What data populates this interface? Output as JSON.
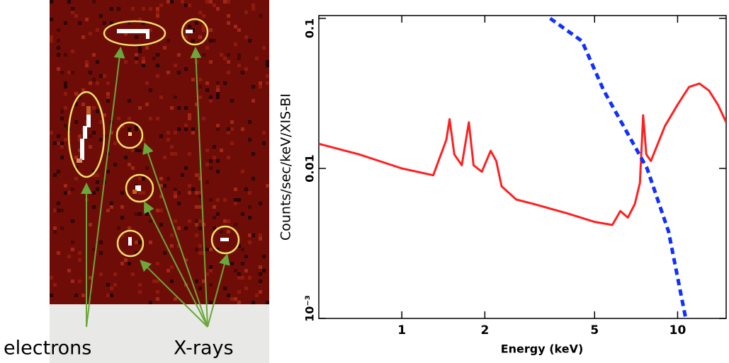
{
  "image_panel": {
    "labels": [
      "electrons",
      "X-rays"
    ]
  },
  "chart_data": {
    "type": "line",
    "xlabel": "Energy (keV)",
    "ylabel": "Counts/sec/keV/XIS-BI",
    "xscale": "log",
    "yscale": "log",
    "xlim": [
      0.5,
      15
    ],
    "ylim": [
      0.001,
      0.1
    ],
    "xticks": [
      1,
      2,
      5,
      10
    ],
    "yticks": [
      {
        "value": 0.001,
        "label": "10⁻³"
      },
      0.01,
      0.1
    ],
    "series": [
      {
        "color": "#ff2020",
        "style": "solid",
        "x": [
          0.5,
          0.7,
          1.0,
          1.3,
          1.45,
          1.49,
          1.55,
          1.65,
          1.75,
          1.82,
          1.95,
          2.1,
          2.2,
          2.3,
          2.6,
          3.0,
          4.0,
          5.0,
          5.8,
          6.2,
          6.6,
          7.0,
          7.3,
          7.5,
          7.7,
          8.0,
          9.0,
          10,
          11,
          12,
          13,
          14,
          15
        ],
        "values": [
          0.0146,
          0.0124,
          0.01,
          0.009,
          0.0155,
          0.0213,
          0.0124,
          0.0105,
          0.0203,
          0.0105,
          0.0095,
          0.0131,
          0.0112,
          0.0076,
          0.0062,
          0.0058,
          0.005,
          0.0044,
          0.0042,
          0.0052,
          0.0047,
          0.0058,
          0.008,
          0.0226,
          0.0124,
          0.0112,
          0.0192,
          0.0266,
          0.0349,
          0.0368,
          0.033,
          0.0266,
          0.0203
        ]
      },
      {
        "color": "#1030ff",
        "style": "dashed",
        "x": [
          3.45,
          4.5,
          5.4,
          7.75,
          9.27,
          10.7
        ],
        "values": [
          0.1,
          0.0706,
          0.033,
          0.01,
          0.0038,
          0.001
        ]
      }
    ]
  }
}
